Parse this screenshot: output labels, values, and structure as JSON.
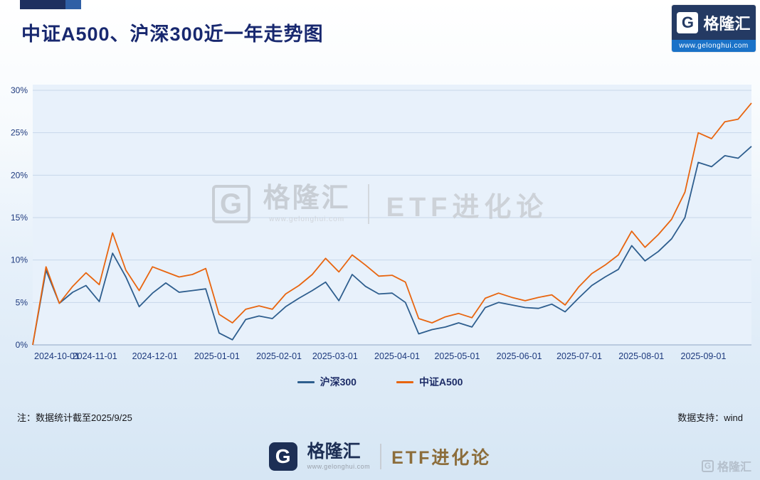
{
  "header": {
    "title": "中证A500、沪深300近一年走势图",
    "brand": {
      "g_letter": "G",
      "name": "格隆汇",
      "url": "www.gelonghui.com"
    }
  },
  "chart_data": {
    "type": "line",
    "title": "中证A500、沪深300近一年走势图",
    "xlabel": "",
    "ylabel": "",
    "start_date": "2024-10-01",
    "end_date": "2025-09-25",
    "x_tick_labels": [
      "2024-10-01",
      "2024-11-01",
      "2024-12-01",
      "2025-01-01",
      "2025-02-01",
      "2025-03-01",
      "2025-04-01",
      "2025-05-01",
      "2025-06-01",
      "2025-07-01",
      "2025-08-01",
      "2025-09-01"
    ],
    "y_tick_labels": [
      "0%",
      "5%",
      "10%",
      "15%",
      "20%",
      "25%",
      "30%"
    ],
    "ylim": [
      0,
      30
    ],
    "grid": true,
    "legend_position": "bottom",
    "series": [
      {
        "name": "沪深300",
        "color": "#2e5e8e",
        "values": [
          0,
          8.8,
          4.9,
          6.2,
          7.0,
          5.1,
          10.8,
          8.0,
          4.5,
          6.1,
          7.3,
          6.2,
          6.4,
          6.6,
          1.4,
          0.6,
          3.0,
          3.4,
          3.1,
          4.5,
          5.5,
          6.4,
          7.4,
          5.2,
          8.3,
          6.9,
          6.0,
          6.1,
          5.0,
          1.3,
          1.8,
          2.1,
          2.6,
          2.1,
          4.4,
          5.0,
          4.7,
          4.4,
          4.3,
          4.8,
          3.9,
          5.5,
          7.0,
          8.0,
          8.9,
          11.7,
          9.9,
          11.0,
          12.5,
          15.0,
          21.5,
          21.0,
          22.3,
          22.0,
          23.4
        ]
      },
      {
        "name": "中证A500",
        "color": "#e8650f",
        "values": [
          0,
          9.2,
          4.9,
          6.9,
          8.5,
          7.1,
          13.2,
          8.8,
          6.4,
          9.2,
          8.6,
          8.0,
          8.3,
          9.0,
          3.6,
          2.6,
          4.2,
          4.6,
          4.2,
          6.0,
          7.0,
          8.3,
          10.2,
          8.6,
          10.6,
          9.4,
          8.1,
          8.2,
          7.4,
          3.1,
          2.6,
          3.3,
          3.7,
          3.2,
          5.5,
          6.1,
          5.6,
          5.2,
          5.6,
          5.9,
          4.7,
          6.8,
          8.4,
          9.4,
          10.6,
          13.4,
          11.5,
          13.0,
          14.8,
          18.0,
          25.0,
          24.3,
          26.3,
          26.6,
          28.5
        ]
      }
    ]
  },
  "watermark": {
    "g_letter": "G",
    "brand": "格隆汇",
    "url": "www.gelonghui.com",
    "product": "ETF进化论"
  },
  "notes": {
    "left": "注：数据统计截至2025/9/25",
    "right": "数据支持：wind"
  },
  "footer": {
    "g_letter": "G",
    "brand": "格隆汇",
    "url": "www.gelonghui.com",
    "product": "ETF进化论"
  },
  "corner_watermark": {
    "g_letter": "G",
    "brand": "格隆汇"
  },
  "colors": {
    "title_navy": "#18286f",
    "axis_text": "#1e3a7e",
    "line_blue": "#2e5e8e",
    "line_orange": "#e8650f",
    "plot_bg": "#e8f1fb",
    "gold": "#8c6d3b"
  }
}
